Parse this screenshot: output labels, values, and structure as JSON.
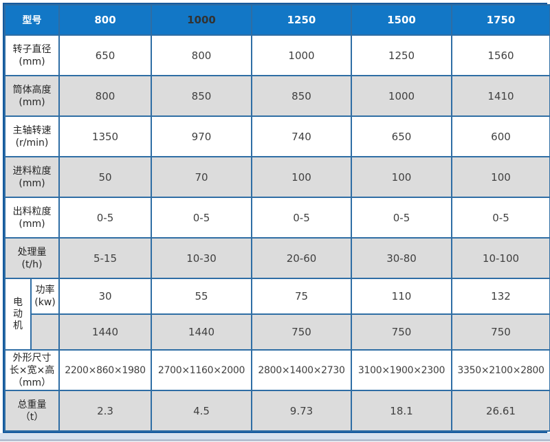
{
  "table": {
    "header": {
      "label": "型号",
      "models": [
        {
          "text": "800",
          "color": "#ffffff"
        },
        {
          "text": "1000",
          "color": "#323232"
        },
        {
          "text": "1250",
          "color": "#ffffff"
        },
        {
          "text": "1500",
          "color": "#ffffff"
        },
        {
          "text": "1750",
          "color": "#ffffff"
        }
      ]
    },
    "rows": [
      {
        "type": "normal",
        "label_lines": [
          "转子直径",
          "(mm)"
        ],
        "shade": false,
        "values": [
          "650",
          "800",
          "1000",
          "1250",
          "1560"
        ]
      },
      {
        "type": "normal",
        "label_lines": [
          "筒体高度",
          "(mm)"
        ],
        "shade": true,
        "values": [
          "800",
          "850",
          "850",
          "1000",
          "1410"
        ]
      },
      {
        "type": "normal",
        "label_lines": [
          "主轴转速",
          "(r/min)"
        ],
        "shade": false,
        "values": [
          "1350",
          "970",
          "740",
          "650",
          "600"
        ]
      },
      {
        "type": "normal",
        "label_lines": [
          "进料粒度",
          "(mm)"
        ],
        "shade": true,
        "values": [
          "50",
          "70",
          "100",
          "100",
          "100"
        ]
      },
      {
        "type": "normal",
        "label_lines": [
          "出料粒度",
          "(mm)"
        ],
        "shade": false,
        "values": [
          "0-5",
          "0-5",
          "0-5",
          "0-5",
          "0-5"
        ]
      },
      {
        "type": "normal",
        "label_lines": [
          "处理量",
          "(t/h)"
        ],
        "shade": true,
        "values": [
          "5-15",
          "10-30",
          "20-60",
          "30-80",
          "10-100"
        ]
      },
      {
        "type": "group-first",
        "group_label": "电动机",
        "sub_label_lines": [
          "功率",
          "(kw)"
        ],
        "shade": false,
        "values": [
          "30",
          "55",
          "75",
          "110",
          "132"
        ]
      },
      {
        "type": "group-second",
        "sub_label_lines": [],
        "shade": true,
        "values": [
          "1440",
          "1440",
          "750",
          "750",
          "750"
        ]
      },
      {
        "type": "normal",
        "label_lines": [
          "外形尺寸",
          "长×宽×高",
          "（mm）"
        ],
        "shade": false,
        "values": [
          "2200×860×1980",
          "2700×1160×2000",
          "2800×1400×2730",
          "3100×1900×2300",
          "3350×2100×2800"
        ]
      },
      {
        "type": "normal",
        "label_lines": [
          "总重量",
          "（t）"
        ],
        "shade": true,
        "values": [
          "2.3",
          "4.5",
          "9.73",
          "18.1",
          "26.61"
        ]
      }
    ],
    "colors": {
      "header_bg": "#1277c6",
      "border": "#2e6da4",
      "outer_border": "#155a9e",
      "shade_row_bg": "#dcdcdc",
      "value_text": "#404040"
    }
  }
}
